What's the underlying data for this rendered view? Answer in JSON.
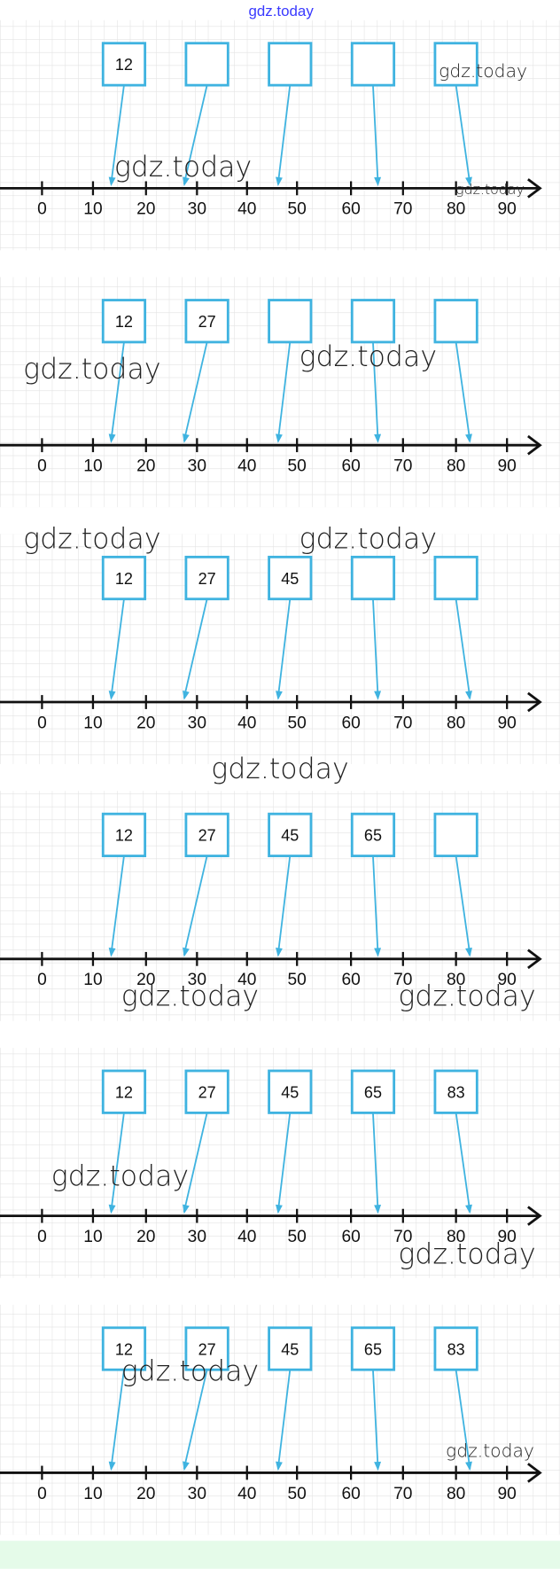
{
  "header": {
    "title": "gdz.today"
  },
  "axis_labels": [
    "0",
    "10",
    "20",
    "30",
    "40",
    "50",
    "60",
    "70",
    "80",
    "90"
  ],
  "panels": [
    {
      "boxes": [
        "12"
      ],
      "watermarks": [
        "gdz.today",
        "gdz.today",
        "gdz.today"
      ]
    },
    {
      "boxes": [
        "12",
        "27"
      ],
      "watermarks": [
        "gdz.today",
        "gdz.today"
      ]
    },
    {
      "boxes": [
        "12",
        "27",
        "45"
      ],
      "watermarks": [
        "gdz.today",
        "gdz.today"
      ]
    },
    {
      "boxes": [
        "12",
        "27",
        "45",
        "65"
      ],
      "watermarks": [
        "gdz.today",
        "gdz.today",
        "gdz.today"
      ]
    },
    {
      "boxes": [
        "12",
        "27",
        "45",
        "65",
        "83"
      ],
      "watermarks": [
        "gdz.today",
        "gdz.today"
      ]
    },
    {
      "boxes": [
        "12",
        "27",
        "45",
        "65",
        "83"
      ],
      "watermarks": [
        "gdz.today",
        "gdz.today"
      ]
    }
  ]
}
